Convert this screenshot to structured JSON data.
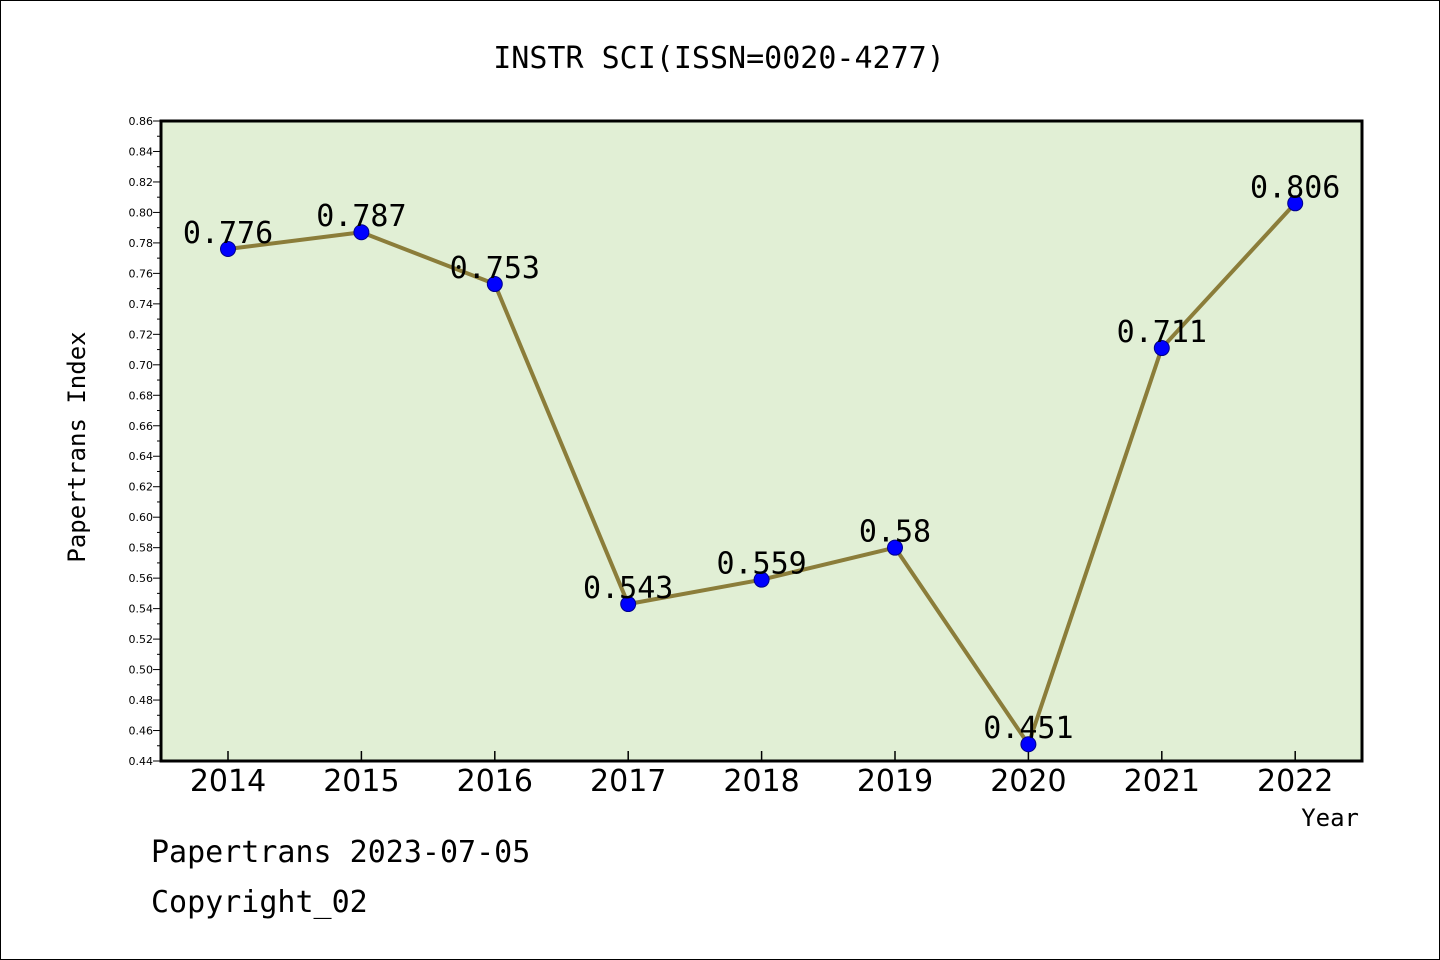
{
  "footer": {
    "line1": "Papertrans 2023-07-05",
    "line2": "Copyright_02"
  },
  "colors": {
    "plot_background": "#e1efd5",
    "line": "#8b7d3a",
    "marker": "#0000ff",
    "marker_edge": "#00008b"
  },
  "chart_data": {
    "type": "line",
    "title": "INSTR SCI(ISSN=0020-4277)",
    "xlabel": "Year",
    "ylabel": "Papertrans Index",
    "categories": [
      "2014",
      "2015",
      "2016",
      "2017",
      "2018",
      "2019",
      "2020",
      "2021",
      "2022"
    ],
    "series": [
      {
        "values": [
          0.776,
          0.787,
          0.753,
          0.543,
          0.559,
          0.58,
          0.451,
          0.711,
          0.806
        ],
        "labels": [
          "0.776",
          "0.787",
          "0.753",
          "0.543",
          "0.559",
          "0.58",
          "0.451",
          "0.711",
          "0.806"
        ]
      }
    ],
    "ylim": [
      0.44,
      0.86
    ],
    "yticks": [
      "0.44",
      "0.46",
      "0.48",
      "0.50",
      "0.52",
      "0.54",
      "0.56",
      "0.58",
      "0.60",
      "0.62",
      "0.64",
      "0.66",
      "0.68",
      "0.70",
      "0.72",
      "0.74",
      "0.76",
      "0.78",
      "0.80",
      "0.82",
      "0.84",
      "0.86"
    ],
    "grid": false,
    "legend": "none"
  }
}
